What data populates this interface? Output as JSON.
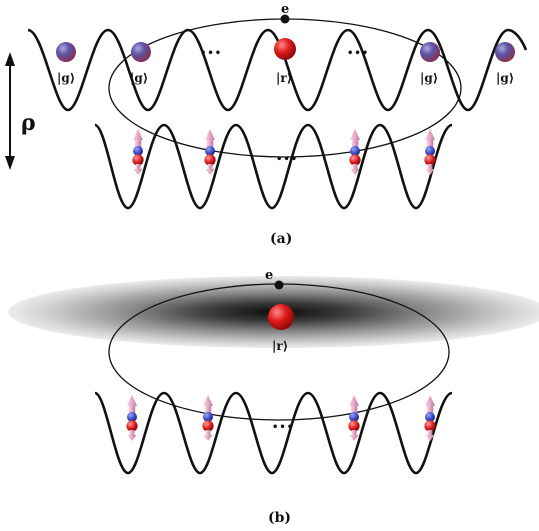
{
  "panel_a": {
    "caption": "(a)",
    "electron_label": "e",
    "rho_label": "ρ",
    "upper_state_labels": [
      "|g⟩",
      "|g⟩",
      "|r⟩",
      "|g⟩",
      "|g⟩"
    ],
    "upper_ellipsis": [
      "•••",
      "•••"
    ],
    "lower_ellipsis": "•••"
  },
  "panel_b": {
    "caption": "(b)",
    "electron_label": "e",
    "rydberg_label": "|r⟩",
    "lower_ellipsis": "•••"
  },
  "colors": {
    "ground_atom": "#5a55a8",
    "rydberg_atom": "#e01a1a",
    "spin_cone": "#e8a8c8",
    "spin_blue": "#3a48c8",
    "spin_red": "#d81818",
    "line": "#111111"
  }
}
